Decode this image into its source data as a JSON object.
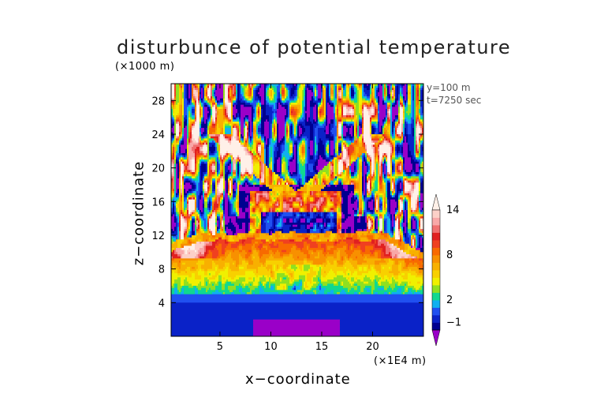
{
  "chart_data": {
    "type": "heatmap",
    "title": "disturbunce of potential temperature",
    "xlabel": "x−coordinate",
    "ylabel": "z−coordinate",
    "x_scale_label": "(×1E4 m)",
    "y_scale_label": "(×1000 m)",
    "annotations": [
      "y=100 m",
      "t=7250 sec"
    ],
    "xlim": [
      0.2,
      25
    ],
    "ylim": [
      0,
      30
    ],
    "x_ticks": [
      5,
      10,
      15,
      20
    ],
    "y_ticks": [
      4,
      8,
      12,
      16,
      20,
      24,
      28
    ],
    "colorbar": {
      "levels": [
        -3,
        -2,
        -1,
        0,
        1,
        2,
        3,
        4,
        5,
        6,
        7,
        8,
        9,
        10,
        11,
        12,
        13,
        14,
        15,
        16
      ],
      "labeled_ticks": [
        -1,
        2,
        8,
        14
      ],
      "tick_labels": [
        "−1",
        "2",
        "8",
        "14"
      ],
      "colors": [
        "#9a00c8",
        "#000090",
        "#0a22c8",
        "#2050f0",
        "#10b0f0",
        "#10d890",
        "#90e020",
        "#f0f000",
        "#f8d000",
        "#f8b000",
        "#f89000",
        "#f86a00",
        "#f04020",
        "#e02020",
        "#f07070",
        "#f8a8a8",
        "#fcd0c8",
        "#fff0e8"
      ],
      "extend": "both"
    }
  }
}
